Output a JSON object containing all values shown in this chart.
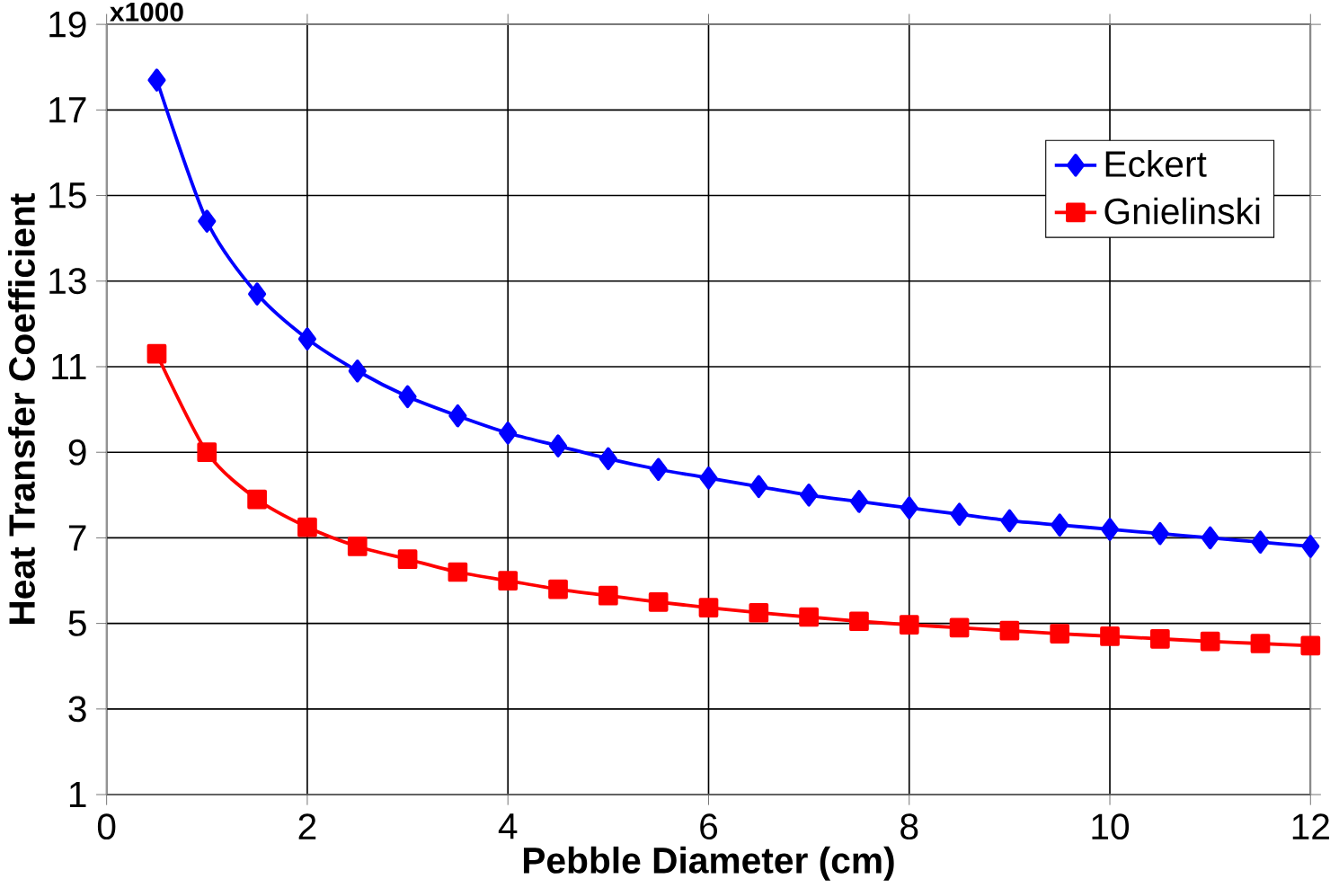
{
  "chart_data": {
    "type": "line",
    "xlabel": "Pebble Diameter (cm)",
    "ylabel": "Heat Transfer Coefficient",
    "annotations": [
      "x1000"
    ],
    "x": [
      0.5,
      1,
      1.5,
      2,
      2.5,
      3,
      3.5,
      4,
      4.5,
      5,
      5.5,
      6,
      6.5,
      7,
      7.5,
      8,
      8.5,
      9,
      9.5,
      10,
      10.5,
      11,
      11.5,
      12
    ],
    "series": [
      {
        "name": "Eckert",
        "color": "#0000ff",
        "marker": "diamond",
        "values": [
          17.7,
          14.4,
          12.7,
          11.65,
          10.9,
          10.3,
          9.85,
          9.45,
          9.15,
          8.85,
          8.6,
          8.4,
          8.2,
          8.0,
          7.85,
          7.7,
          7.55,
          7.4,
          7.3,
          7.2,
          7.1,
          7.0,
          6.9,
          6.8
        ]
      },
      {
        "name": "Gnielinski",
        "color": "#ff0000",
        "marker": "square",
        "values": [
          11.3,
          9.0,
          7.9,
          7.25,
          6.8,
          6.5,
          6.2,
          6.0,
          5.8,
          5.65,
          5.5,
          5.37,
          5.25,
          5.15,
          5.05,
          4.97,
          4.9,
          4.83,
          4.76,
          4.7,
          4.64,
          4.58,
          4.53,
          4.48
        ]
      }
    ],
    "xlim": [
      0,
      12
    ],
    "xticks": [
      0,
      2,
      4,
      6,
      8,
      10,
      12
    ],
    "ylim": [
      1,
      19
    ],
    "yticks": [
      1,
      3,
      5,
      7,
      9,
      11,
      13,
      15,
      17,
      19
    ],
    "grid": true,
    "legend": "top right",
    "line_style": "solid"
  }
}
